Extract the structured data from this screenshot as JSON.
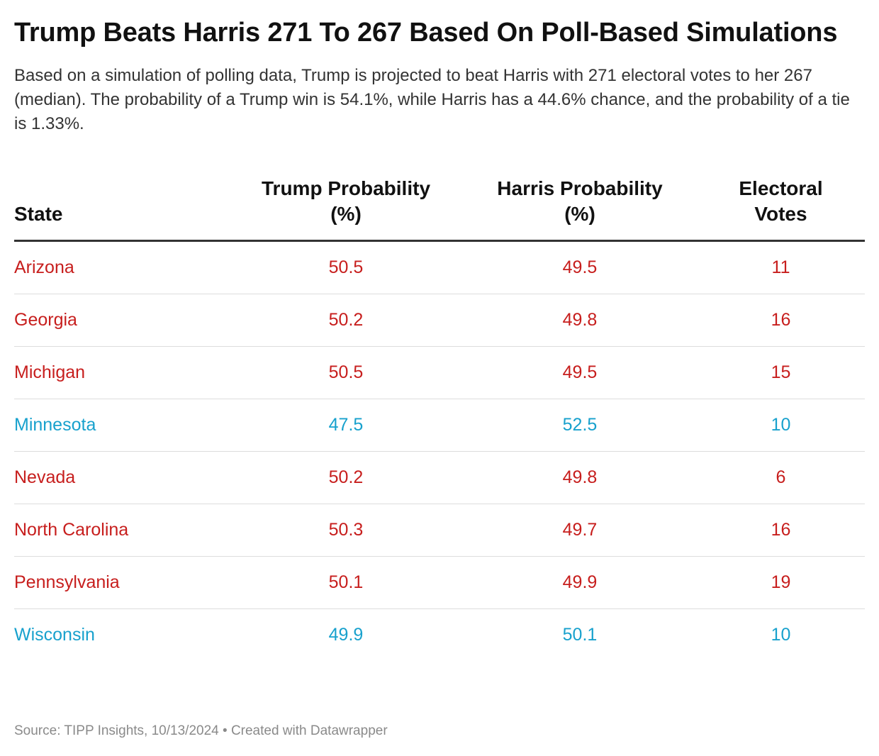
{
  "title": "Trump Beats Harris 271 To 267 Based On Poll-Based Simulations",
  "subtitle": "Based on a simulation of polling data, Trump is projected to beat Harris with 271 electoral votes to her 267 (median). The probability of a Trump win is 54.1%, while Harris has a 44.6% chance, and the probability of a tie is 1.33%.",
  "footer": {
    "source": "Source: TIPP Insights, 10/13/2024",
    "separator": "•",
    "credit": "Created with Datawrapper"
  },
  "colors": {
    "trump_lead": "#c71e1d",
    "harris_lead": "#18a1cd"
  },
  "chart_data": {
    "type": "table",
    "columns": [
      "State",
      "Trump Probability (%)",
      "Harris Probability (%)",
      "Electoral Votes"
    ],
    "rows": [
      {
        "state": "Arizona",
        "trump": "50.5",
        "harris": "49.5",
        "votes": "11",
        "leader": "trump"
      },
      {
        "state": "Georgia",
        "trump": "50.2",
        "harris": "49.8",
        "votes": "16",
        "leader": "trump"
      },
      {
        "state": "Michigan",
        "trump": "50.5",
        "harris": "49.5",
        "votes": "15",
        "leader": "trump"
      },
      {
        "state": "Minnesota",
        "trump": "47.5",
        "harris": "52.5",
        "votes": "10",
        "leader": "harris"
      },
      {
        "state": "Nevada",
        "trump": "50.2",
        "harris": "49.8",
        "votes": "6",
        "leader": "trump"
      },
      {
        "state": "North Carolina",
        "trump": "50.3",
        "harris": "49.7",
        "votes": "16",
        "leader": "trump"
      },
      {
        "state": "Pennsylvania",
        "trump": "50.1",
        "harris": "49.9",
        "votes": "19",
        "leader": "trump"
      },
      {
        "state": "Wisconsin",
        "trump": "49.9",
        "harris": "50.1",
        "votes": "10",
        "leader": "harris"
      }
    ]
  }
}
